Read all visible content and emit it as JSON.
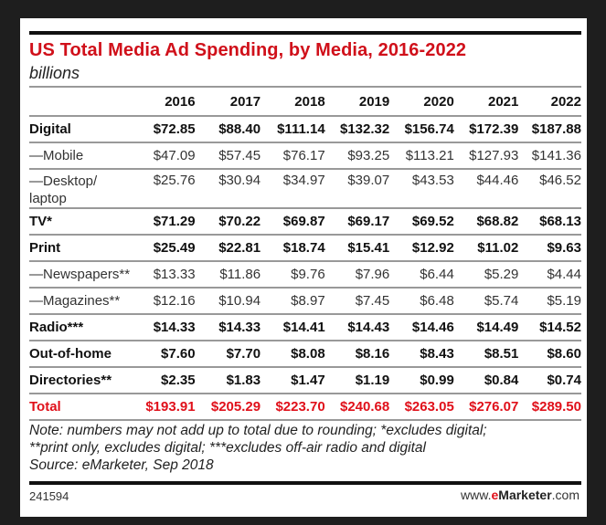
{
  "chart_data": {
    "type": "table",
    "title": "US Total Media Ad Spending, by Media, 2016-2022",
    "subtitle": "billions",
    "columns": [
      "2016",
      "2017",
      "2018",
      "2019",
      "2020",
      "2021",
      "2022"
    ],
    "rows": [
      {
        "label": "Digital",
        "style": "bold",
        "values": [
          "$72.85",
          "$88.40",
          "$111.14",
          "$132.32",
          "$156.74",
          "$172.39",
          "$187.88"
        ]
      },
      {
        "label": "—Mobile",
        "style": "sub",
        "values": [
          "$47.09",
          "$57.45",
          "$76.17",
          "$93.25",
          "$113.21",
          "$127.93",
          "$141.36"
        ]
      },
      {
        "label": "—Desktop/ laptop",
        "style": "sub tall",
        "values": [
          "$25.76",
          "$30.94",
          "$34.97",
          "$39.07",
          "$43.53",
          "$44.46",
          "$46.52"
        ]
      },
      {
        "label": "TV*",
        "style": "bold",
        "values": [
          "$71.29",
          "$70.22",
          "$69.87",
          "$69.17",
          "$69.52",
          "$68.82",
          "$68.13"
        ]
      },
      {
        "label": "Print",
        "style": "bold",
        "values": [
          "$25.49",
          "$22.81",
          "$18.74",
          "$15.41",
          "$12.92",
          "$11.02",
          "$9.63"
        ]
      },
      {
        "label": "—Newspapers**",
        "style": "sub",
        "values": [
          "$13.33",
          "$11.86",
          "$9.76",
          "$7.96",
          "$6.44",
          "$5.29",
          "$4.44"
        ]
      },
      {
        "label": "—Magazines**",
        "style": "sub",
        "values": [
          "$12.16",
          "$10.94",
          "$8.97",
          "$7.45",
          "$6.48",
          "$5.74",
          "$5.19"
        ]
      },
      {
        "label": "Radio***",
        "style": "bold",
        "values": [
          "$14.33",
          "$14.33",
          "$14.41",
          "$14.43",
          "$14.46",
          "$14.49",
          "$14.52"
        ]
      },
      {
        "label": "Out-of-home",
        "style": "bold",
        "values": [
          "$7.60",
          "$7.70",
          "$8.08",
          "$8.16",
          "$8.43",
          "$8.51",
          "$8.60"
        ]
      },
      {
        "label": "Directories**",
        "style": "bold",
        "values": [
          "$2.35",
          "$1.83",
          "$1.47",
          "$1.19",
          "$0.99",
          "$0.84",
          "$0.74"
        ]
      },
      {
        "label": "Total",
        "style": "total",
        "values": [
          "$193.91",
          "$205.29",
          "$223.70",
          "$240.68",
          "$263.05",
          "$276.07",
          "$289.50"
        ]
      }
    ],
    "colors": {
      "title": "#d0101a",
      "total": "#e0101a"
    }
  },
  "note_lines": [
    "Note: numbers may not add up to total due to rounding; *excludes digital;",
    "**print only, excludes digital; ***excludes off-air radio and digital",
    "Source: eMarketer, Sep 2018"
  ],
  "footer": {
    "id": "241594",
    "brand_prefix": "www.",
    "brand_e": "e",
    "brand_rest": "Marketer",
    "brand_suffix": ".com"
  }
}
